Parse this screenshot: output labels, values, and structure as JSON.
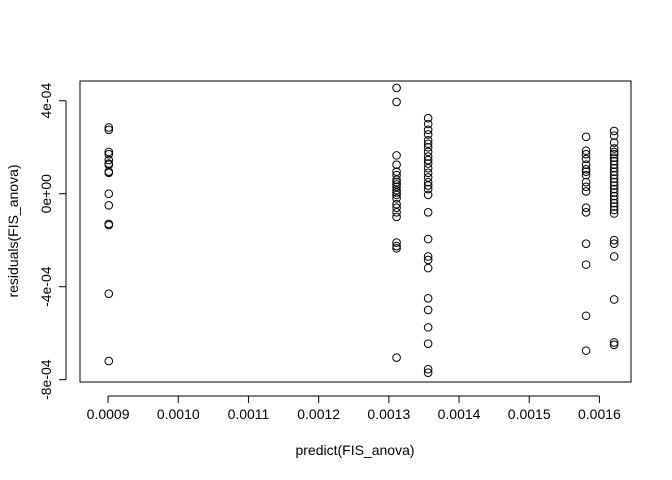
{
  "chart_data": {
    "type": "scatter",
    "title": "",
    "xlabel": "predict(FIS_anova)",
    "ylabel": "residuals(FIS_anova)",
    "xlim": [
      0.00086,
      0.001645
    ],
    "ylim": [
      -0.00081,
      0.000485
    ],
    "x_ticks": [
      {
        "value": 0.0009,
        "label": "0.0009"
      },
      {
        "value": 0.001,
        "label": "0.0010"
      },
      {
        "value": 0.0011,
        "label": "0.0011"
      },
      {
        "value": 0.0012,
        "label": "0.0012"
      },
      {
        "value": 0.0013,
        "label": "0.0013"
      },
      {
        "value": 0.0014,
        "label": "0.0014"
      },
      {
        "value": 0.0015,
        "label": "0.0015"
      },
      {
        "value": 0.0016,
        "label": "0.0016"
      }
    ],
    "y_ticks": [
      {
        "value": 0.0004,
        "label": "4e-04"
      },
      {
        "value": 0.0,
        "label": "0e+00"
      },
      {
        "value": -0.0004,
        "label": "-4e-04"
      },
      {
        "value": -0.0008,
        "label": "-8e-04"
      }
    ],
    "grid": false,
    "marker": "open-circle",
    "series": [
      {
        "x": 0.000901,
        "y": [
          0.000285,
          0.000275,
          0.00018,
          0.00017,
          0.000145,
          0.00013,
          0.000125,
          9.5e-05,
          9e-05,
          0.0,
          -5e-05,
          -0.00013,
          -0.000135,
          -0.00043,
          -0.00072
        ]
      },
      {
        "x": 0.001311,
        "y": [
          0.000455,
          0.000395,
          0.000165,
          0.000125,
          9.5e-05,
          8e-05,
          6e-05,
          5e-05,
          4e-05,
          3e-05,
          1.5e-05,
          5e-06,
          -5e-06,
          -2e-05,
          -4.5e-05,
          -6e-05,
          -8e-05,
          -0.0001,
          -0.00021,
          -0.000225,
          -0.000235,
          -0.000705
        ]
      },
      {
        "x": 0.001356,
        "y": [
          0.000325,
          0.0003,
          0.000275,
          0.000255,
          0.00023,
          0.000215,
          0.0002,
          0.00018,
          0.00016,
          0.000145,
          0.00013,
          0.00011,
          9e-05,
          7e-05,
          5e-05,
          3.5e-05,
          2e-05,
          -5e-06,
          -8e-05,
          -0.000195,
          -0.00027,
          -0.000285,
          -0.00032,
          -0.00045,
          -0.0005,
          -0.000575,
          -0.000645,
          -0.000755,
          -0.00077
        ]
      },
      {
        "x": 0.001581,
        "y": [
          0.000245,
          0.000185,
          0.00017,
          0.00015,
          0.000125,
          0.000105,
          9.5e-05,
          8e-05,
          5e-05,
          3e-05,
          1e-05,
          -6e-05,
          -8e-05,
          -0.000215,
          -0.000305,
          -0.000525,
          -0.000675
        ]
      },
      {
        "x": 0.001621,
        "y": [
          0.00027,
          0.00025,
          0.00022,
          0.000195,
          0.00018,
          0.00017,
          0.000155,
          0.00014,
          0.000125,
          0.00011,
          9.5e-05,
          8e-05,
          6.5e-05,
          5e-05,
          3.5e-05,
          2e-05,
          5e-06,
          -1e-05,
          -2.5e-05,
          -4e-05,
          -5.5e-05,
          -7e-05,
          -8.5e-05,
          -0.0002,
          -0.000215,
          -0.00027,
          -0.000455,
          -0.00064,
          -0.00065
        ]
      }
    ]
  }
}
